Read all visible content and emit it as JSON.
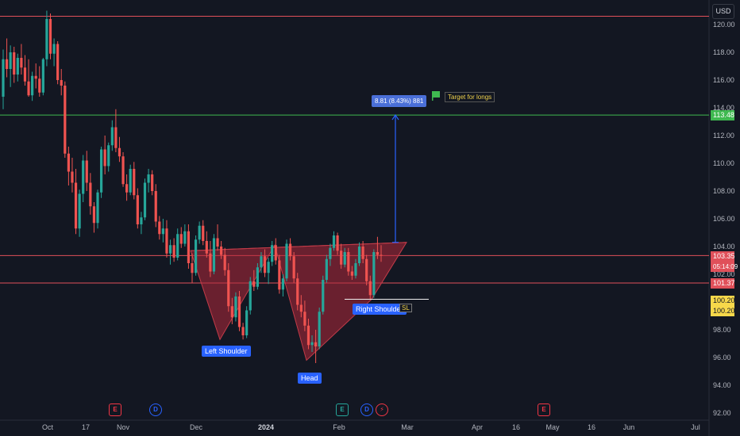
{
  "chart_data": {
    "type": "candlestick",
    "currency": "USD",
    "y_ticks": [
      "120.00",
      "118.00",
      "116.00",
      "114.00",
      "112.00",
      "110.00",
      "108.00",
      "106.00",
      "104.00",
      "102.00",
      "100.00",
      "98.00",
      "96.00",
      "94.00",
      "92.00"
    ],
    "x_ticks": [
      "Oct",
      "17",
      "Nov",
      "Dec",
      "2024",
      "Feb",
      "Mar",
      "Apr",
      "16",
      "May",
      "16",
      "Jun",
      "Jul"
    ],
    "ylim": [
      92,
      121.2
    ],
    "horizontal_lines": [
      {
        "price": 120.6,
        "color": "#e0505a",
        "label": ""
      },
      {
        "price": 113.48,
        "color": "#3fb950",
        "label": "113.48"
      },
      {
        "price": 103.35,
        "color": "#e0505a",
        "label": "103.35"
      },
      {
        "price": 101.37,
        "color": "#e0505a",
        "label": "101.37"
      }
    ],
    "price_labels": {
      "current": "103.35",
      "countdown": "05:14:09",
      "support": "101.37",
      "target": "113.48",
      "stop_1": "100.20",
      "stop_2": "100.20"
    },
    "candles": [
      [
        114.8,
        118.2,
        113.9,
        117.5
      ],
      [
        117.5,
        119.0,
        116.2,
        116.8
      ],
      [
        116.8,
        118.5,
        115.5,
        118.0
      ],
      [
        118.0,
        118.4,
        115.8,
        116.4
      ],
      [
        116.4,
        117.9,
        115.9,
        117.6
      ],
      [
        117.6,
        118.6,
        116.4,
        116.9
      ],
      [
        116.9,
        117.8,
        115.6,
        115.9
      ],
      [
        115.9,
        117.5,
        114.8,
        114.9
      ],
      [
        114.9,
        116.6,
        114.5,
        116.3
      ],
      [
        116.3,
        117.2,
        115.4,
        116.1
      ],
      [
        116.1,
        117.0,
        114.8,
        115.1
      ],
      [
        115.1,
        117.6,
        114.9,
        117.5
      ],
      [
        117.5,
        121.0,
        117.0,
        120.4
      ],
      [
        120.4,
        120.8,
        117.5,
        117.9
      ],
      [
        117.9,
        119.0,
        117.0,
        118.6
      ],
      [
        118.6,
        118.8,
        115.7,
        116.0
      ],
      [
        116.0,
        116.8,
        114.9,
        115.6
      ],
      [
        115.6,
        115.9,
        110.4,
        110.7
      ],
      [
        110.7,
        111.2,
        108.4,
        109.4
      ],
      [
        109.4,
        110.4,
        107.9,
        108.6
      ],
      [
        108.6,
        109.6,
        104.9,
        105.3
      ],
      [
        105.3,
        108.1,
        104.7,
        107.8
      ],
      [
        107.8,
        110.6,
        107.2,
        110.2
      ],
      [
        110.2,
        110.9,
        108.0,
        108.6
      ],
      [
        108.6,
        109.3,
        106.3,
        106.9
      ],
      [
        106.9,
        107.2,
        105.0,
        105.7
      ],
      [
        105.7,
        108.1,
        105.3,
        107.9
      ],
      [
        107.9,
        111.2,
        107.5,
        111.0
      ],
      [
        111.0,
        112.0,
        109.2,
        109.8
      ],
      [
        109.8,
        111.5,
        109.4,
        111.3
      ],
      [
        111.3,
        113.1,
        110.9,
        112.6
      ],
      [
        112.6,
        113.9,
        110.8,
        111.1
      ],
      [
        111.1,
        111.9,
        110.1,
        110.5
      ],
      [
        110.5,
        110.8,
        108.3,
        108.5
      ],
      [
        108.5,
        109.2,
        107.3,
        107.9
      ],
      [
        107.9,
        109.9,
        107.7,
        109.6
      ],
      [
        109.6,
        110.1,
        107.4,
        107.7
      ],
      [
        107.7,
        108.2,
        105.3,
        105.6
      ],
      [
        105.6,
        106.5,
        104.9,
        106.1
      ],
      [
        106.1,
        108.9,
        105.9,
        108.6
      ],
      [
        108.6,
        109.6,
        107.9,
        109.2
      ],
      [
        109.2,
        109.5,
        107.7,
        108.0
      ],
      [
        108.0,
        108.5,
        105.4,
        105.8
      ],
      [
        105.8,
        106.2,
        104.5,
        104.9
      ],
      [
        104.9,
        106.0,
        104.3,
        105.3
      ],
      [
        105.3,
        105.9,
        103.2,
        103.5
      ],
      [
        103.5,
        104.5,
        102.7,
        104.1
      ],
      [
        104.1,
        104.6,
        102.9,
        103.2
      ],
      [
        103.2,
        105.3,
        103.0,
        104.9
      ],
      [
        104.9,
        105.4,
        103.9,
        104.2
      ],
      [
        104.2,
        105.6,
        104.0,
        105.1
      ],
      [
        105.1,
        105.6,
        102.4,
        102.8
      ],
      [
        102.8,
        103.5,
        101.4,
        102.1
      ],
      [
        102.1,
        104.8,
        101.9,
        104.5
      ],
      [
        104.5,
        105.8,
        104.2,
        105.5
      ],
      [
        105.5,
        105.9,
        104.1,
        104.4
      ],
      [
        104.4,
        105.1,
        103.2,
        103.5
      ],
      [
        103.5,
        104.4,
        101.8,
        102.2
      ],
      [
        102.2,
        104.9,
        102.0,
        104.6
      ],
      [
        104.6,
        105.6,
        103.7,
        104.0
      ],
      [
        104.0,
        104.4,
        103.1,
        103.4
      ],
      [
        103.4,
        103.9,
        101.9,
        102.3
      ],
      [
        102.3,
        102.8,
        99.3,
        99.7
      ],
      [
        99.7,
        100.3,
        98.4,
        98.9
      ],
      [
        98.9,
        100.7,
        98.6,
        100.4
      ],
      [
        100.4,
        100.8,
        97.9,
        98.2
      ],
      [
        98.2,
        98.5,
        97.3,
        97.6
      ],
      [
        97.6,
        99.7,
        97.4,
        99.4
      ],
      [
        99.4,
        101.8,
        99.1,
        101.5
      ],
      [
        101.5,
        102.3,
        100.8,
        101.1
      ],
      [
        101.1,
        102.8,
        100.9,
        102.5
      ],
      [
        102.5,
        103.6,
        102.1,
        103.3
      ],
      [
        103.3,
        103.8,
        101.8,
        102.1
      ],
      [
        102.1,
        103.2,
        101.3,
        102.9
      ],
      [
        102.9,
        104.4,
        102.6,
        104.1
      ],
      [
        104.1,
        104.6,
        102.7,
        103.0
      ],
      [
        103.0,
        103.4,
        100.6,
        100.9
      ],
      [
        100.9,
        102.0,
        100.4,
        101.7
      ],
      [
        101.7,
        104.5,
        101.5,
        104.2
      ],
      [
        104.2,
        104.6,
        103.0,
        103.3
      ],
      [
        103.3,
        103.6,
        101.4,
        101.7
      ],
      [
        101.7,
        102.1,
        99.4,
        99.8
      ],
      [
        99.8,
        100.5,
        98.9,
        99.3
      ],
      [
        99.3,
        100.1,
        97.9,
        98.3
      ],
      [
        98.3,
        98.8,
        96.6,
        96.9
      ],
      [
        96.9,
        97.6,
        96.4,
        97.1
      ],
      [
        97.1,
        98.0,
        95.6,
        96.8
      ],
      [
        96.8,
        99.6,
        96.6,
        99.3
      ],
      [
        99.3,
        101.9,
        99.1,
        101.6
      ],
      [
        101.6,
        103.4,
        101.4,
        103.1
      ],
      [
        103.1,
        104.2,
        102.6,
        103.9
      ],
      [
        103.9,
        105.1,
        103.7,
        104.8
      ],
      [
        104.8,
        105.0,
        103.4,
        103.7
      ],
      [
        103.7,
        104.2,
        102.4,
        102.7
      ],
      [
        102.7,
        103.9,
        102.5,
        103.6
      ],
      [
        103.6,
        103.9,
        101.9,
        102.2
      ],
      [
        102.2,
        102.6,
        101.6,
        101.9
      ],
      [
        101.9,
        103.1,
        101.7,
        102.8
      ],
      [
        102.8,
        104.3,
        102.6,
        104.0
      ],
      [
        104.0,
        104.4,
        102.8,
        103.1
      ],
      [
        103.1,
        103.4,
        101.2,
        101.5
      ],
      [
        101.5,
        101.9,
        100.2,
        100.5
      ],
      [
        100.5,
        103.8,
        100.3,
        103.6
      ],
      [
        103.6,
        104.7,
        103.1,
        103.4
      ],
      [
        103.4,
        104.1,
        102.9,
        103.35
      ]
    ]
  },
  "pattern": {
    "left_shoulder_label": "Left Shoulder",
    "head_label": "Head",
    "right_shoulder_label": "Right Shoulder",
    "measure_label": "8.81 (8.43%) 881",
    "target_label": "Target for longs",
    "sl_label": "SL"
  },
  "events": [
    {
      "letter": "E",
      "color": "#f23645"
    },
    {
      "letter": "D",
      "color": "#2962ff"
    },
    {
      "letter": "E",
      "color": "#26a69a"
    },
    {
      "letter": "D",
      "color": "#2962ff"
    },
    {
      "letter": "⚡",
      "color": "#f23645"
    },
    {
      "letter": "E",
      "color": "#f23645"
    }
  ],
  "colors": {
    "bull": "#26a69a",
    "bear": "#ef5350",
    "pattern_fill": "#b2283a",
    "target_line": "#3fb950",
    "resistance": "#e0505a",
    "measure": "#2962ff"
  }
}
